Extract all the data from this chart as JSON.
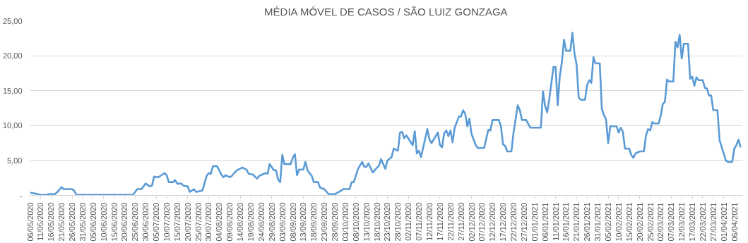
{
  "chart_data": {
    "type": "line",
    "title": "MÉDIA MÓVEL DE CASOS / SÃO LUIZ GONZAGA",
    "x": [
      "2020-05-06",
      "2020-05-08",
      "2020-05-11",
      "2020-05-14",
      "2020-05-15",
      "2020-05-18",
      "2020-05-19",
      "2020-05-21",
      "2020-05-22",
      "2020-05-26",
      "2020-05-27",
      "2020-05-28",
      "2020-06-02",
      "2020-06-19",
      "2020-06-24",
      "2020-06-26",
      "2020-06-28",
      "2020-06-30",
      "2020-07-02",
      "2020-07-03",
      "2020-07-04",
      "2020-07-06",
      "2020-07-09",
      "2020-07-10",
      "2020-07-11",
      "2020-07-13",
      "2020-07-14",
      "2020-07-15",
      "2020-07-17",
      "2020-07-18",
      "2020-07-20",
      "2020-07-21",
      "2020-07-23",
      "2020-07-24",
      "2020-07-27",
      "2020-07-29",
      "2020-07-30",
      "2020-07-31",
      "2020-08-01",
      "2020-08-03",
      "2020-08-05",
      "2020-08-06",
      "2020-08-07",
      "2020-08-09",
      "2020-08-10",
      "2020-08-12",
      "2020-08-13",
      "2020-08-15",
      "2020-08-17",
      "2020-08-18",
      "2020-08-20",
      "2020-08-22",
      "2020-08-23",
      "2020-08-26",
      "2020-08-27",
      "2020-08-28",
      "2020-08-30",
      "2020-08-31",
      "2020-09-01",
      "2020-09-02",
      "2020-09-03",
      "2020-09-04",
      "2020-09-07",
      "2020-09-08",
      "2020-09-09",
      "2020-09-10",
      "2020-09-11",
      "2020-09-13",
      "2020-09-14",
      "2020-09-15",
      "2020-09-17",
      "2020-09-18",
      "2020-09-20",
      "2020-09-21",
      "2020-09-23",
      "2020-09-25",
      "2020-09-28",
      "2020-10-01",
      "2020-10-02",
      "2020-10-05",
      "2020-10-06",
      "2020-10-07",
      "2020-10-09",
      "2020-10-11",
      "2020-10-12",
      "2020-10-13",
      "2020-10-14",
      "2020-10-16",
      "2020-10-19",
      "2020-10-20",
      "2020-10-22",
      "2020-10-23",
      "2020-10-25",
      "2020-10-26",
      "2020-10-28",
      "2020-10-29",
      "2020-10-30",
      "2020-10-31",
      "2020-11-01",
      "2020-11-04",
      "2020-11-05",
      "2020-11-06",
      "2020-11-07",
      "2020-11-08",
      "2020-11-11",
      "2020-11-12",
      "2020-11-13",
      "2020-11-16",
      "2020-11-17",
      "2020-11-18",
      "2020-11-19",
      "2020-11-20",
      "2020-11-21",
      "2020-11-22",
      "2020-11-23",
      "2020-11-24",
      "2020-11-26",
      "2020-11-27",
      "2020-11-28",
      "2020-11-29",
      "2020-11-30",
      "2020-12-01",
      "2020-12-02",
      "2020-12-04",
      "2020-12-05",
      "2020-12-08",
      "2020-12-10",
      "2020-12-11",
      "2020-12-12",
      "2020-12-15",
      "2020-12-16",
      "2020-12-17",
      "2020-12-18",
      "2020-12-19",
      "2020-12-21",
      "2020-12-22",
      "2020-12-24",
      "2020-12-25",
      "2020-12-26",
      "2020-12-28",
      "2020-12-30",
      "2021-01-04",
      "2021-01-05",
      "2021-01-06",
      "2021-01-07",
      "2021-01-08",
      "2021-01-10",
      "2021-01-11",
      "2021-01-12",
      "2021-01-13",
      "2021-01-14",
      "2021-01-15",
      "2021-01-16",
      "2021-01-18",
      "2021-01-19",
      "2021-01-20",
      "2021-01-21",
      "2021-01-22",
      "2021-01-23",
      "2021-01-25",
      "2021-01-26",
      "2021-01-27",
      "2021-01-28",
      "2021-01-29",
      "2021-01-30",
      "2021-02-01",
      "2021-02-02",
      "2021-02-03",
      "2021-02-04",
      "2021-02-05",
      "2021-02-06",
      "2021-02-09",
      "2021-02-10",
      "2021-02-11",
      "2021-02-12",
      "2021-02-13",
      "2021-02-15",
      "2021-02-16",
      "2021-02-17",
      "2021-02-18",
      "2021-02-20",
      "2021-02-22",
      "2021-02-23",
      "2021-02-24",
      "2021-02-25",
      "2021-02-26",
      "2021-02-27",
      "2021-03-01",
      "2021-03-02",
      "2021-03-03",
      "2021-03-04",
      "2021-03-05",
      "2021-03-06",
      "2021-03-08",
      "2021-03-09",
      "2021-03-10",
      "2021-03-11",
      "2021-03-12",
      "2021-03-13",
      "2021-03-15",
      "2021-03-16",
      "2021-03-17",
      "2021-03-18",
      "2021-03-19",
      "2021-03-20",
      "2021-03-22",
      "2021-03-23",
      "2021-03-24",
      "2021-03-25",
      "2021-03-26",
      "2021-03-27",
      "2021-03-29",
      "2021-03-30",
      "2021-04-02",
      "2021-04-03",
      "2021-04-05",
      "2021-04-06",
      "2021-04-07",
      "2021-04-08",
      "2021-04-09"
    ],
    "series": [
      {
        "color": "#5b9bd5",
        "values": [
          0.4,
          0.3,
          0.1,
          0.1,
          0.2,
          0.2,
          0.5,
          1.2,
          0.9,
          0.9,
          0.7,
          0.1,
          0.1,
          0.1,
          0.1,
          0.9,
          0.9,
          1.7,
          1.3,
          1.4,
          2.7,
          2.6,
          3.2,
          2.9,
          1.9,
          1.9,
          2.2,
          1.7,
          1.7,
          1.4,
          1.3,
          0.5,
          0.9,
          0.5,
          0.7,
          2.8,
          3.2,
          3.1,
          4.2,
          4.2,
          3.0,
          2.6,
          2.9,
          2.6,
          2.8,
          3.5,
          3.7,
          4.0,
          3.7,
          3.1,
          3.0,
          2.4,
          2.8,
          3.2,
          3.1,
          4.5,
          3.6,
          3.6,
          2.3,
          1.9,
          5.8,
          4.5,
          4.5,
          5.4,
          5.9,
          2.9,
          3.7,
          3.7,
          4.8,
          3.6,
          2.8,
          1.9,
          1.9,
          1.1,
          0.9,
          0.2,
          0.2,
          0.7,
          0.9,
          0.9,
          1.9,
          1.9,
          3.8,
          4.8,
          4.1,
          4.1,
          4.6,
          3.3,
          4.3,
          5.2,
          3.8,
          5.0,
          5.5,
          6.7,
          6.4,
          9.0,
          9.1,
          8.2,
          8.6,
          7.2,
          9.2,
          6.0,
          6.4,
          5.5,
          9.5,
          8.0,
          7.5,
          9.0,
          7.2,
          6.9,
          8.9,
          9.3,
          8.5,
          9.3,
          7.6,
          9.7,
          11.3,
          11.3,
          12.2,
          11.7,
          9.9,
          11.0,
          8.8,
          7.2,
          6.8,
          6.8,
          9.4,
          9.3,
          10.8,
          10.8,
          9.9,
          7.3,
          7.1,
          6.3,
          6.3,
          9.0,
          12.9,
          12.2,
          10.8,
          10.8,
          9.7,
          9.7,
          14.9,
          12.8,
          11.9,
          13.8,
          18.4,
          18.4,
          12.9,
          17.1,
          19.1,
          22.3,
          20.7,
          20.7,
          23.3,
          20.3,
          18.7,
          14.0,
          13.7,
          13.7,
          15.8,
          16.5,
          16.1,
          19.8,
          18.9,
          18.9,
          12.4,
          11.5,
          10.9,
          7.5,
          9.9,
          9.9,
          9.0,
          9.7,
          9.1,
          6.7,
          6.7,
          5.8,
          5.4,
          6.0,
          6.3,
          6.3,
          8.6,
          9.5,
          9.3,
          10.5,
          10.3,
          10.3,
          11.4,
          13.1,
          13.4,
          16.6,
          16.3,
          16.3,
          22.0,
          21.2,
          23.0,
          19.6,
          21.7,
          21.7,
          16.7,
          17.0,
          15.7,
          16.9,
          16.5,
          16.5,
          15.4,
          15.3,
          14.3,
          14.3,
          12.2,
          12.2,
          7.9,
          5.0,
          4.8,
          4.8,
          6.7,
          7.2,
          8.0,
          6.9
        ]
      }
    ],
    "xlim": [
      "2020-05-06",
      "2021-04-10"
    ],
    "xticks": [
      {
        "value": "2020-05-06",
        "label": "06/05/2020"
      },
      {
        "value": "2020-05-11",
        "label": "11/05/2020"
      },
      {
        "value": "2020-05-16",
        "label": "16/05/2020"
      },
      {
        "value": "2020-05-21",
        "label": "21/05/2020"
      },
      {
        "value": "2020-05-26",
        "label": "26/05/2020"
      },
      {
        "value": "2020-05-31",
        "label": "31/05/2020"
      },
      {
        "value": "2020-06-05",
        "label": "05/06/2020"
      },
      {
        "value": "2020-06-10",
        "label": "10/06/2020"
      },
      {
        "value": "2020-06-15",
        "label": "15/06/2020"
      },
      {
        "value": "2020-06-20",
        "label": "20/06/2020"
      },
      {
        "value": "2020-06-25",
        "label": "25/06/2020"
      },
      {
        "value": "2020-06-30",
        "label": "30/06/2020"
      },
      {
        "value": "2020-07-05",
        "label": "05/07/2020"
      },
      {
        "value": "2020-07-10",
        "label": "10/07/2020"
      },
      {
        "value": "2020-07-15",
        "label": "15/07/2020"
      },
      {
        "value": "2020-07-20",
        "label": "20/07/2020"
      },
      {
        "value": "2020-07-25",
        "label": "25/07/2020"
      },
      {
        "value": "2020-07-30",
        "label": "30/07/2020"
      },
      {
        "value": "2020-08-04",
        "label": "04/08/2020"
      },
      {
        "value": "2020-08-09",
        "label": "09/08/2020"
      },
      {
        "value": "2020-08-14",
        "label": "14/08/2020"
      },
      {
        "value": "2020-08-19",
        "label": "19/08/2020"
      },
      {
        "value": "2020-08-24",
        "label": "24/08/2020"
      },
      {
        "value": "2020-08-29",
        "label": "29/08/2020"
      },
      {
        "value": "2020-09-03",
        "label": "03/09/2020"
      },
      {
        "value": "2020-09-08",
        "label": "08/09/2020"
      },
      {
        "value": "2020-09-13",
        "label": "13/09/2020"
      },
      {
        "value": "2020-09-18",
        "label": "18/09/2020"
      },
      {
        "value": "2020-09-23",
        "label": "23/09/2020"
      },
      {
        "value": "2020-09-28",
        "label": "28/09/2020"
      },
      {
        "value": "2020-10-03",
        "label": "03/10/2020"
      },
      {
        "value": "2020-10-08",
        "label": "08/10/2020"
      },
      {
        "value": "2020-10-13",
        "label": "13/10/2020"
      },
      {
        "value": "2020-10-18",
        "label": "18/10/2020"
      },
      {
        "value": "2020-10-23",
        "label": "23/10/2020"
      },
      {
        "value": "2020-10-28",
        "label": "28/10/2020"
      },
      {
        "value": "2020-11-02",
        "label": "02/11/2020"
      },
      {
        "value": "2020-11-07",
        "label": "07/11/2020"
      },
      {
        "value": "2020-11-12",
        "label": "12/11/2020"
      },
      {
        "value": "2020-11-17",
        "label": "17/11/2020"
      },
      {
        "value": "2020-11-22",
        "label": "22/11/2020"
      },
      {
        "value": "2020-11-27",
        "label": "27/11/2020"
      },
      {
        "value": "2020-12-02",
        "label": "02/12/2020"
      },
      {
        "value": "2020-12-07",
        "label": "07/12/2020"
      },
      {
        "value": "2020-12-12",
        "label": "12/12/2020"
      },
      {
        "value": "2020-12-17",
        "label": "17/12/2020"
      },
      {
        "value": "2020-12-22",
        "label": "22/12/2020"
      },
      {
        "value": "2020-12-27",
        "label": "27/12/2020"
      },
      {
        "value": "2021-01-01",
        "label": "01/01/2021"
      },
      {
        "value": "2021-01-06",
        "label": "06/01/2021"
      },
      {
        "value": "2021-01-11",
        "label": "11/01/2021"
      },
      {
        "value": "2021-01-16",
        "label": "16/01/2021"
      },
      {
        "value": "2021-01-21",
        "label": "21/01/2021"
      },
      {
        "value": "2021-01-26",
        "label": "26/01/2021"
      },
      {
        "value": "2021-01-31",
        "label": "31/01/2021"
      },
      {
        "value": "2021-02-05",
        "label": "05/02/2021"
      },
      {
        "value": "2021-02-10",
        "label": "10/02/2021"
      },
      {
        "value": "2021-02-15",
        "label": "15/02/2021"
      },
      {
        "value": "2021-02-20",
        "label": "20/02/2021"
      },
      {
        "value": "2021-02-25",
        "label": "25/02/2021"
      },
      {
        "value": "2021-03-02",
        "label": "02/03/2021"
      },
      {
        "value": "2021-03-07",
        "label": "07/03/2021"
      },
      {
        "value": "2021-03-12",
        "label": "12/03/2021"
      },
      {
        "value": "2021-03-17",
        "label": "17/03/2021"
      },
      {
        "value": "2021-03-22",
        "label": "22/03/2021"
      },
      {
        "value": "2021-03-27",
        "label": "27/03/2021"
      },
      {
        "value": "2021-04-01",
        "label": "01/04/2021"
      },
      {
        "value": "2021-04-06",
        "label": "06/04/2021"
      }
    ],
    "ylim": [
      0,
      25
    ],
    "yticks": [
      {
        "value": 0,
        "label": "-"
      },
      {
        "value": 5,
        "label": "5,00"
      },
      {
        "value": 10,
        "label": "10,00"
      },
      {
        "value": 15,
        "label": "15,00"
      },
      {
        "value": 20,
        "label": "20,00"
      },
      {
        "value": 25,
        "label": "25,00"
      }
    ],
    "grid": "y",
    "marker": "none",
    "line_style": "solid"
  }
}
